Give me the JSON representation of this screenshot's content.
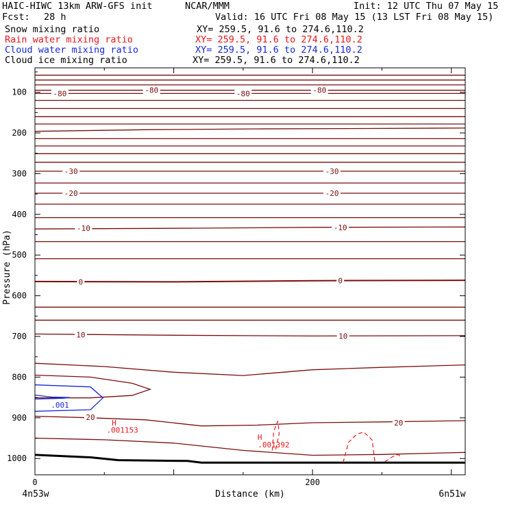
{
  "header": {
    "model": "HAIC-HIWC 13km ARW-GFS init",
    "org": "NCAR/MMM",
    "init": "Init: 12 UTC Thu 07 May 15",
    "fcst_label": "Fcst:",
    "fcst_value": "28 h",
    "valid": "Valid: 16 UTC Fri 08 May 15 (13 LST Fri 08 May 15)"
  },
  "fields": [
    {
      "name": "Snow mixing ratio",
      "xy": "XY= 259.5, 91.6 to 274.6,110.2",
      "color": "#000000"
    },
    {
      "name": "Rain water mixing ratio",
      "xy": "XY= 259.5, 91.6 to 274.6,110.2",
      "color": "#e8161b"
    },
    {
      "name": "Cloud water mixing ratio",
      "xy": "XY= 259.5, 91.6 to 274.6,110.2",
      "color": "#1528d6"
    },
    {
      "name": "Cloud ice mixing ratio",
      "xy": "XY= 259.5, 91.6 to 274.6,110.2",
      "color": "#000000"
    }
  ],
  "chart_data": {
    "type": "line",
    "description": "Cross-section; temperature isotherms (deg C) in dark red vs pressure and distance",
    "xlabel": "Distance (km)",
    "ylabel": "Pressure (hPa)",
    "xlim": [
      0,
      310
    ],
    "ylim": [
      1040,
      40
    ],
    "x_ticks": [
      0,
      200
    ],
    "y_ticks": [
      100,
      200,
      300,
      400,
      500,
      600,
      700,
      800,
      900,
      1000
    ],
    "x_endpoints": {
      "left": "4n53w",
      "right": "6n51w"
    },
    "isotherm_color": "#7a0c0c",
    "ground_color": "#000000",
    "isotherms": [
      {
        "x": [
          0,
          310
        ],
        "y": [
          58,
          58
        ]
      },
      {
        "x": [
          0,
          310
        ],
        "y": [
          70,
          70
        ]
      },
      {
        "x": [
          0,
          310
        ],
        "y": [
          82,
          82
        ]
      },
      {
        "x": [
          0,
          310
        ],
        "y": [
          95,
          95
        ],
        "label": "-80",
        "label_at": [
          [
            84,
            95
          ],
          [
            205,
            95
          ]
        ]
      },
      {
        "x": [
          0,
          310
        ],
        "y": [
          103,
          103
        ],
        "label": "-80",
        "label_at": [
          [
            18,
            103
          ],
          [
            150,
            103
          ]
        ]
      },
      {
        "x": [
          0,
          310
        ],
        "y": [
          120,
          120
        ]
      },
      {
        "x": [
          0,
          310
        ],
        "y": [
          140,
          140
        ]
      },
      {
        "x": [
          0,
          310
        ],
        "y": [
          160,
          160
        ]
      },
      {
        "x": [
          0,
          310
        ],
        "y": [
          178,
          178
        ]
      },
      {
        "x": [
          0,
          80,
          160,
          240,
          310
        ],
        "y": [
          196,
          192,
          190,
          189,
          188
        ]
      },
      {
        "x": [
          0,
          310
        ],
        "y": [
          214,
          214
        ]
      },
      {
        "x": [
          0,
          310
        ],
        "y": [
          232,
          232
        ]
      },
      {
        "x": [
          0,
          310
        ],
        "y": [
          251,
          251
        ]
      },
      {
        "x": [
          0,
          310
        ],
        "y": [
          272,
          272
        ]
      },
      {
        "x": [
          0,
          310
        ],
        "y": [
          294,
          294
        ],
        "label": "-30",
        "label_at": [
          [
            26,
            294
          ],
          [
            214,
            294
          ]
        ]
      },
      {
        "x": [
          0,
          310
        ],
        "y": [
          323,
          323
        ]
      },
      {
        "x": [
          0,
          310
        ],
        "y": [
          348,
          348
        ],
        "label": "-20",
        "label_at": [
          [
            26,
            348
          ],
          [
            214,
            348
          ]
        ]
      },
      {
        "x": [
          0,
          310
        ],
        "y": [
          375,
          375
        ]
      },
      {
        "x": [
          0,
          310
        ],
        "y": [
          408,
          408
        ]
      },
      {
        "x": [
          0,
          120,
          200,
          310
        ],
        "y": [
          436,
          434,
          432,
          431
        ],
        "label": "-10",
        "label_at": [
          [
            35,
            434
          ],
          [
            220,
            432
          ]
        ]
      },
      {
        "x": [
          0,
          310
        ],
        "y": [
          467,
          467
        ]
      },
      {
        "x": [
          0,
          310
        ],
        "y": [
          509,
          509
        ]
      },
      {
        "x": [
          0,
          100,
          200,
          310
        ],
        "y": [
          565,
          566,
          563,
          562
        ],
        "label": "0",
        "label_at": [
          [
            33,
            566
          ],
          [
            220,
            563
          ]
        ],
        "bold": true
      },
      {
        "x": [
          0,
          310
        ],
        "y": [
          628,
          628
        ]
      },
      {
        "x": [
          0,
          310
        ],
        "y": [
          660,
          660
        ]
      },
      {
        "x": [
          0,
          100,
          200,
          310
        ],
        "y": [
          694,
          697,
          699,
          698
        ],
        "label": "10",
        "label_at": [
          [
            33,
            696
          ],
          [
            222,
            699
          ]
        ]
      },
      {
        "x": [
          0,
          50,
          100,
          150,
          200,
          250,
          310
        ],
        "y": [
          766,
          774,
          788,
          796,
          782,
          776,
          770
        ]
      },
      {
        "x": [
          0,
          40,
          70,
          83,
          70,
          40,
          0
        ],
        "y": [
          795,
          800,
          815,
          830,
          845,
          851,
          851
        ]
      },
      {
        "x": [
          0,
          40,
          80,
          120,
          160,
          200,
          250,
          310
        ],
        "y": [
          896,
          900,
          905,
          920,
          918,
          912,
          910,
          907
        ],
        "label": "20",
        "label_at": [
          [
            40,
            899
          ],
          [
            262,
            912
          ]
        ]
      },
      {
        "x": [
          0,
          50,
          100,
          150,
          200,
          250,
          310
        ],
        "y": [
          950,
          954,
          962,
          980,
          992,
          990,
          985
        ]
      }
    ],
    "ground": {
      "x": [
        0,
        40,
        60,
        110,
        120,
        310
      ],
      "y": [
        991,
        997,
        1004,
        1006,
        1010,
        1010
      ]
    },
    "cloud_water": {
      "color": "#1528d6",
      "polygons": [
        {
          "x": [
            0,
            40,
            49,
            40,
            0
          ],
          "y": [
            819,
            824,
            851,
            880,
            884
          ]
        },
        {
          "x": [
            0,
            12,
            25,
            20,
            0
          ],
          "y": [
            844,
            849,
            850,
            852,
            854
          ]
        }
      ],
      "label": ".001",
      "label_at": [
        18,
        868
      ]
    },
    "rain_water": {
      "color": "#e8161b",
      "dashed": [
        {
          "x": [
            171,
            172,
            175,
            176,
            173
          ],
          "y": [
            980,
            934,
            908,
            939,
            985
          ]
        },
        {
          "x": [
            222,
            226,
            232,
            237,
            243,
            245
          ],
          "y": [
            1010,
            960,
            940,
            935,
            955,
            1010
          ]
        },
        {
          "x": [
            252,
            258,
            262,
            264
          ],
          "y": [
            1008,
            995,
            990,
            1000
          ]
        }
      ],
      "highs": [
        {
          "symbol": "H",
          "value": ".001153",
          "x": [
            57,
            63
          ],
          "y": [
            912,
            930
          ]
        },
        {
          "symbol": "H",
          "value": ".001392",
          "x": [
            162,
            172
          ],
          "y": [
            947,
            966
          ]
        }
      ]
    },
    "cloud_water_label": ".001"
  }
}
